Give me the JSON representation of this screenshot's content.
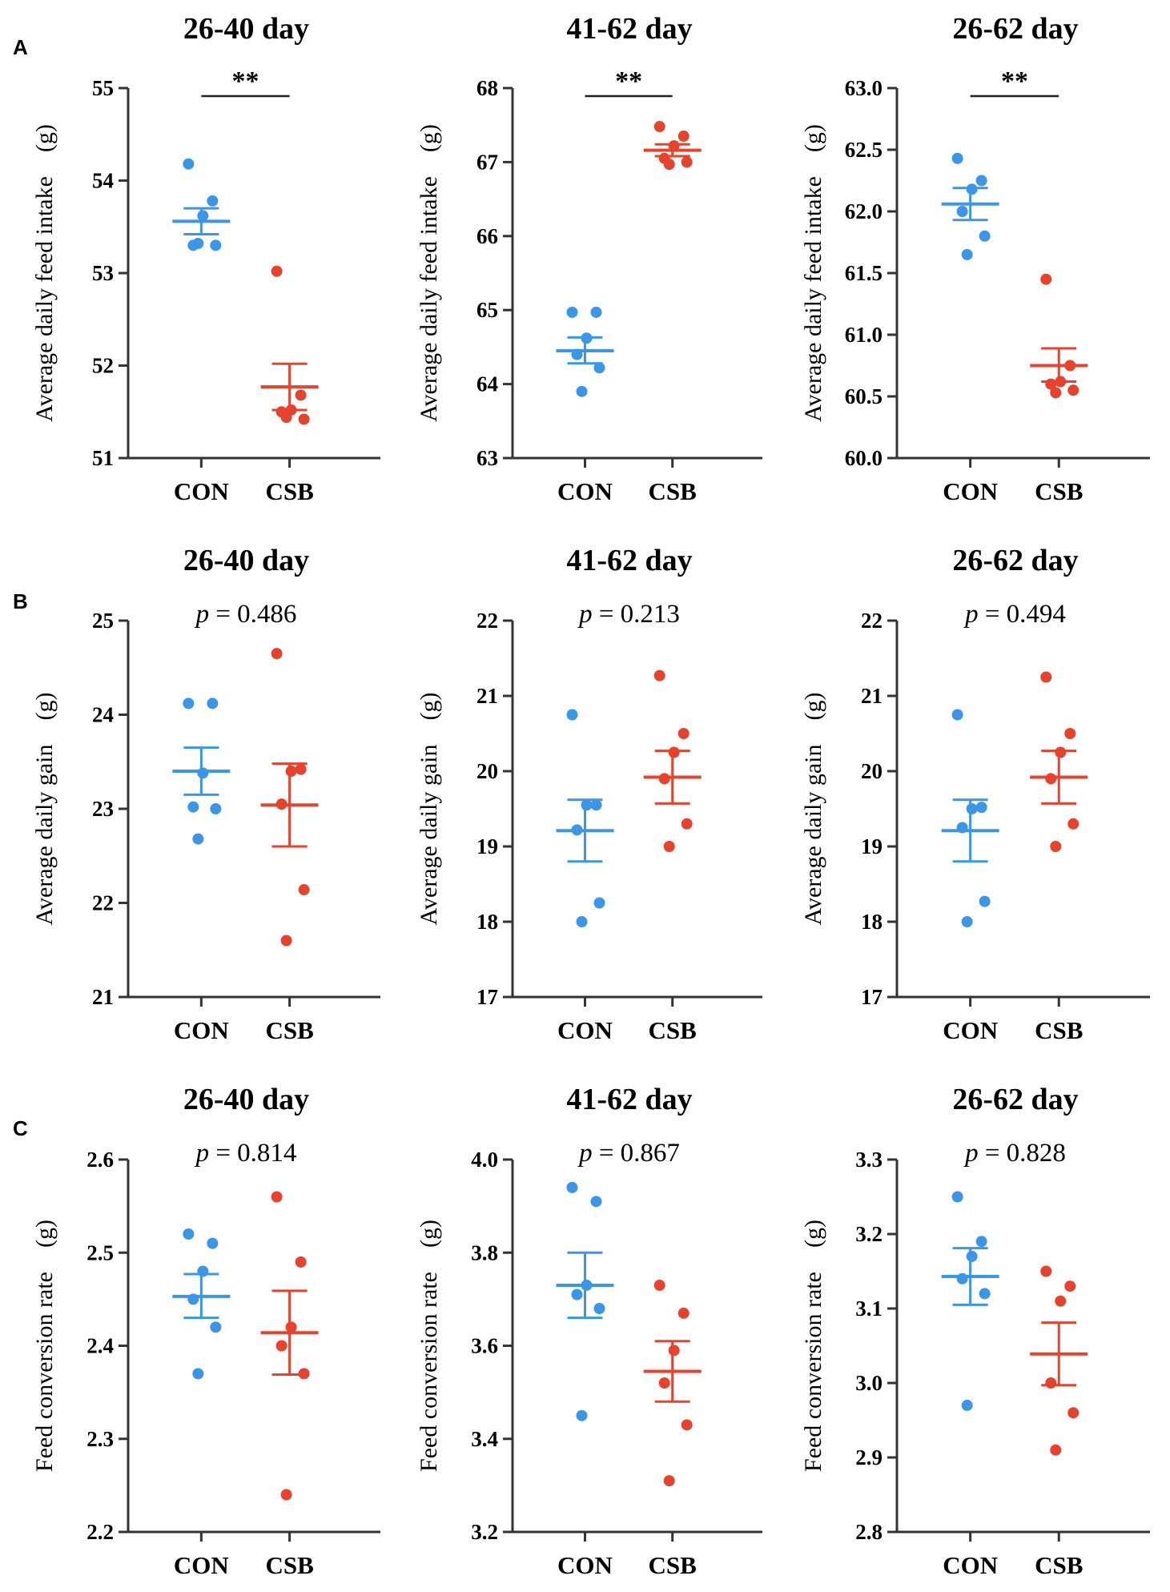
{
  "panel_letters": [
    "A",
    "B",
    "C"
  ],
  "colors": {
    "CON": "#3a96e8",
    "CSB": "#e8412c",
    "axis": "#333333"
  },
  "chart_data": [
    {
      "type": "scatter",
      "panel": "A",
      "title": "26-40 day",
      "annotation": "**",
      "annotation_kind": "significance",
      "xlabel": "",
      "ylabel": "Average daily feed intake　(g)",
      "ylim": [
        51,
        55
      ],
      "yticks": [
        51,
        52,
        53,
        54,
        55
      ],
      "ytick_labels": [
        "51",
        "52",
        "53",
        "54",
        "55"
      ],
      "categories": [
        "CON",
        "CSB"
      ],
      "series": [
        {
          "name": "CON",
          "values": [
            54.18,
            53.78,
            53.62,
            53.3,
            53.3,
            53.32
          ],
          "mean": 53.56,
          "sem_low": 53.42,
          "sem_high": 53.7
        },
        {
          "name": "CSB",
          "values": [
            53.02,
            51.68,
            51.52,
            51.5,
            51.42,
            51.44
          ],
          "mean": 51.77,
          "sem_low": 51.52,
          "sem_high": 52.02
        }
      ]
    },
    {
      "type": "scatter",
      "panel": "A",
      "title": "41-62 day",
      "annotation": "**",
      "annotation_kind": "significance",
      "xlabel": "",
      "ylabel": "Average daily feed intake　(g)",
      "ylim": [
        63,
        68
      ],
      "yticks": [
        63,
        64,
        65,
        66,
        67,
        68
      ],
      "ytick_labels": [
        "63",
        "64",
        "65",
        "66",
        "67",
        "68"
      ],
      "categories": [
        "CON",
        "CSB"
      ],
      "series": [
        {
          "name": "CON",
          "values": [
            64.97,
            64.97,
            64.62,
            64.4,
            64.22,
            63.9
          ],
          "mean": 64.45,
          "sem_low": 64.28,
          "sem_high": 64.63
        },
        {
          "name": "CSB",
          "values": [
            67.48,
            67.35,
            67.22,
            67.05,
            67.0,
            66.97
          ],
          "mean": 67.16,
          "sem_low": 67.08,
          "sem_high": 67.24
        }
      ]
    },
    {
      "type": "scatter",
      "panel": "A",
      "title": "26-62 day",
      "annotation": "**",
      "annotation_kind": "significance",
      "xlabel": "",
      "ylabel": "Average daily feed intake　(g)",
      "ylim": [
        60.0,
        63.0
      ],
      "yticks": [
        60.0,
        60.5,
        61.0,
        61.5,
        62.0,
        62.5,
        63.0
      ],
      "ytick_labels": [
        "60.0",
        "60.5",
        "61.0",
        "61.5",
        "62.0",
        "62.5",
        "63.0"
      ],
      "categories": [
        "CON",
        "CSB"
      ],
      "series": [
        {
          "name": "CON",
          "values": [
            62.43,
            62.25,
            62.18,
            62.0,
            61.8,
            61.65
          ],
          "mean": 62.06,
          "sem_low": 61.93,
          "sem_high": 62.19
        },
        {
          "name": "CSB",
          "values": [
            61.45,
            60.75,
            60.62,
            60.6,
            60.55,
            60.53
          ],
          "mean": 60.75,
          "sem_low": 60.62,
          "sem_high": 60.89
        }
      ]
    },
    {
      "type": "scatter",
      "panel": "B",
      "title": "26-40 day",
      "annotation": "p = 0.486",
      "annotation_kind": "pvalue",
      "xlabel": "",
      "ylabel": "Average daily gain　(g)",
      "ylim": [
        21,
        25
      ],
      "yticks": [
        21,
        22,
        23,
        24,
        25
      ],
      "ytick_labels": [
        "21",
        "22",
        "23",
        "24",
        "25"
      ],
      "categories": [
        "CON",
        "CSB"
      ],
      "series": [
        {
          "name": "CON",
          "values": [
            24.12,
            24.12,
            23.38,
            23.02,
            23.0,
            22.68
          ],
          "mean": 23.4,
          "sem_low": 23.15,
          "sem_high": 23.65
        },
        {
          "name": "CSB",
          "values": [
            24.65,
            23.42,
            23.4,
            23.05,
            22.14,
            21.6
          ],
          "mean": 23.04,
          "sem_low": 22.6,
          "sem_high": 23.48
        }
      ]
    },
    {
      "type": "scatter",
      "panel": "B",
      "title": "41-62 day",
      "annotation": "p = 0.213",
      "annotation_kind": "pvalue",
      "xlabel": "",
      "ylabel": "Average daily gain　(g)",
      "ylim": [
        17,
        22
      ],
      "yticks": [
        17,
        18,
        19,
        20,
        21,
        22
      ],
      "ytick_labels": [
        "17",
        "18",
        "19",
        "20",
        "21",
        "22"
      ],
      "categories": [
        "CON",
        "CSB"
      ],
      "series": [
        {
          "name": "CON",
          "values": [
            20.75,
            19.55,
            19.55,
            19.22,
            18.25,
            18.0
          ],
          "mean": 19.21,
          "sem_low": 18.8,
          "sem_high": 19.62
        },
        {
          "name": "CSB",
          "values": [
            21.27,
            20.5,
            20.25,
            19.9,
            19.3,
            19.0
          ],
          "mean": 19.92,
          "sem_low": 19.57,
          "sem_high": 20.27
        }
      ]
    },
    {
      "type": "scatter",
      "panel": "B",
      "title": "26-62 day",
      "annotation": "p = 0.494",
      "annotation_kind": "pvalue",
      "xlabel": "",
      "ylabel": "Average daily gain　(g)",
      "ylim": [
        17,
        22
      ],
      "yticks": [
        17,
        18,
        19,
        20,
        21,
        22
      ],
      "ytick_labels": [
        "17",
        "18",
        "19",
        "20",
        "21",
        "22"
      ],
      "categories": [
        "CON",
        "CSB"
      ],
      "series": [
        {
          "name": "CON",
          "values": [
            20.75,
            19.52,
            19.5,
            19.25,
            18.27,
            18.0
          ],
          "mean": 19.21,
          "sem_low": 18.8,
          "sem_high": 19.62
        },
        {
          "name": "CSB",
          "values": [
            21.25,
            20.5,
            20.25,
            19.9,
            19.3,
            19.0
          ],
          "mean": 19.92,
          "sem_low": 19.57,
          "sem_high": 20.27
        }
      ]
    },
    {
      "type": "scatter",
      "panel": "C",
      "title": "26-40 day",
      "annotation": "p = 0.814",
      "annotation_kind": "pvalue",
      "xlabel": "",
      "ylabel": "Feed conversion rate　(g)",
      "ylim": [
        2.2,
        2.6
      ],
      "yticks": [
        2.2,
        2.3,
        2.4,
        2.5,
        2.6
      ],
      "ytick_labels": [
        "2.2",
        "2.3",
        "2.4",
        "2.5",
        "2.6"
      ],
      "categories": [
        "CON",
        "CSB"
      ],
      "series": [
        {
          "name": "CON",
          "values": [
            2.52,
            2.51,
            2.48,
            2.45,
            2.42,
            2.37
          ],
          "mean": 2.453,
          "sem_low": 2.43,
          "sem_high": 2.477
        },
        {
          "name": "CSB",
          "values": [
            2.56,
            2.49,
            2.42,
            2.4,
            2.37,
            2.24
          ],
          "mean": 2.414,
          "sem_low": 2.369,
          "sem_high": 2.459
        }
      ]
    },
    {
      "type": "scatter",
      "panel": "C",
      "title": "41-62 day",
      "annotation": "p = 0.867",
      "annotation_kind": "pvalue",
      "xlabel": "",
      "ylabel": "Feed conversion rate　(g)",
      "ylim": [
        3.2,
        4.0
      ],
      "yticks": [
        3.2,
        3.4,
        3.6,
        3.8,
        4.0
      ],
      "ytick_labels": [
        "3.2",
        "3.4",
        "3.6",
        "3.8",
        "4.0"
      ],
      "categories": [
        "CON",
        "CSB"
      ],
      "series": [
        {
          "name": "CON",
          "values": [
            3.94,
            3.91,
            3.73,
            3.71,
            3.68,
            3.45
          ],
          "mean": 3.73,
          "sem_low": 3.66,
          "sem_high": 3.8
        },
        {
          "name": "CSB",
          "values": [
            3.73,
            3.67,
            3.59,
            3.52,
            3.43,
            3.31
          ],
          "mean": 3.545,
          "sem_low": 3.48,
          "sem_high": 3.61
        }
      ]
    },
    {
      "type": "scatter",
      "panel": "C",
      "title": "26-62 day",
      "annotation": "p = 0.828",
      "annotation_kind": "pvalue",
      "xlabel": "",
      "ylabel": "Feed conversion rate　(g)",
      "ylim": [
        2.8,
        3.3
      ],
      "yticks": [
        2.8,
        2.9,
        3.0,
        3.1,
        3.2,
        3.3
      ],
      "ytick_labels": [
        "2.8",
        "2.9",
        "3.0",
        "3.1",
        "3.2",
        "3.3"
      ],
      "categories": [
        "CON",
        "CSB"
      ],
      "series": [
        {
          "name": "CON",
          "values": [
            3.25,
            3.19,
            3.17,
            3.14,
            3.12,
            2.97
          ],
          "mean": 3.143,
          "sem_low": 3.105,
          "sem_high": 3.181
        },
        {
          "name": "CSB",
          "values": [
            3.15,
            3.13,
            3.11,
            3.0,
            2.96,
            2.91
          ],
          "mean": 3.039,
          "sem_low": 2.997,
          "sem_high": 3.081
        }
      ]
    }
  ]
}
